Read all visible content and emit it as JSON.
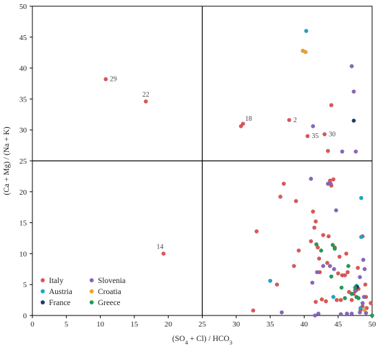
{
  "chart_data": {
    "type": "scatter",
    "xlabel_parts": [
      "(SO",
      "4",
      " + Cl) / HCO",
      "3"
    ],
    "ylabel_parts": [
      "(Ca + Mg) / (Na + K)"
    ],
    "xlim": [
      0,
      50
    ],
    "ylim": [
      0,
      50
    ],
    "xticks": [
      "0",
      "5",
      "10",
      "15",
      "20",
      "25",
      "30",
      "35",
      "40",
      "45",
      "50"
    ],
    "yticks": [
      "0",
      "5",
      "10",
      "15",
      "20",
      "25",
      "30",
      "35",
      "40",
      "45",
      "50"
    ],
    "quadrant_dividers": {
      "x": 25,
      "y": 25
    },
    "grid": false,
    "legend_position": "bottom-left",
    "point_labels": [
      {
        "text": "29",
        "x": 10.8,
        "y": 38.2
      },
      {
        "text": "22",
        "x": 16.7,
        "y": 34.6
      },
      {
        "text": "18",
        "x": 31.0,
        "y": 31.0
      },
      {
        "text": "2",
        "x": 37.8,
        "y": 31.6
      },
      {
        "text": "35",
        "x": 40.5,
        "y": 29.0
      },
      {
        "text": "30",
        "x": 43.0,
        "y": 29.3
      },
      {
        "text": "14",
        "x": 19.3,
        "y": 10.0
      }
    ],
    "series": [
      {
        "name": "Italy",
        "color": "#e05555",
        "points": [
          [
            10.8,
            38.2
          ],
          [
            16.7,
            34.6
          ],
          [
            30.7,
            30.6
          ],
          [
            31.0,
            31.0
          ],
          [
            37.8,
            31.6
          ],
          [
            40.5,
            29.0
          ],
          [
            43.0,
            29.3
          ],
          [
            43.5,
            26.6
          ],
          [
            44.0,
            34.0
          ],
          [
            19.3,
            10.0
          ],
          [
            33.0,
            13.6
          ],
          [
            32.5,
            0.8
          ],
          [
            36.5,
            19.2
          ],
          [
            37.0,
            21.3
          ],
          [
            36.0,
            5.0
          ],
          [
            38.5,
            8.0
          ],
          [
            38.8,
            18.5
          ],
          [
            39.2,
            10.5
          ],
          [
            41.0,
            12.0
          ],
          [
            41.3,
            16.8
          ],
          [
            41.5,
            14.2
          ],
          [
            41.7,
            15.2
          ],
          [
            41.7,
            2.2
          ],
          [
            42.0,
            11.0
          ],
          [
            42.2,
            9.2
          ],
          [
            42.3,
            7.0
          ],
          [
            42.6,
            2.6
          ],
          [
            42.8,
            13.0
          ],
          [
            43.2,
            2.3
          ],
          [
            43.4,
            8.5
          ],
          [
            43.6,
            12.8
          ],
          [
            43.8,
            21.8
          ],
          [
            44.0,
            21.0
          ],
          [
            44.3,
            22.0
          ],
          [
            44.5,
            11.0
          ],
          [
            44.8,
            2.5
          ],
          [
            45.0,
            6.8
          ],
          [
            45.2,
            9.5
          ],
          [
            45.4,
            2.5
          ],
          [
            45.6,
            6.5
          ],
          [
            46.0,
            6.5
          ],
          [
            46.2,
            10.0
          ],
          [
            46.4,
            7.0
          ],
          [
            46.6,
            3.8
          ],
          [
            47.0,
            2.5
          ],
          [
            47.3,
            3.5
          ],
          [
            47.6,
            4.0
          ],
          [
            48.0,
            4.3
          ],
          [
            48.3,
            0.9
          ],
          [
            48.6,
            1.5
          ],
          [
            49.0,
            5.0
          ],
          [
            49.1,
            3.0
          ],
          [
            49.2,
            1.2
          ],
          [
            49.8,
            2.0
          ],
          [
            47.9,
            7.7
          ],
          [
            48.6,
            12.8
          ]
        ]
      },
      {
        "name": "Slovenia",
        "color": "#8866bb",
        "points": [
          [
            41.3,
            30.6
          ],
          [
            43.5,
            21.3
          ],
          [
            43.9,
            21.3
          ],
          [
            47.0,
            40.3
          ],
          [
            47.3,
            36.2
          ],
          [
            47.6,
            26.5
          ],
          [
            45.6,
            26.5
          ],
          [
            44.7,
            17.0
          ],
          [
            41.0,
            22.1
          ],
          [
            41.2,
            5.3
          ],
          [
            41.9,
            7.0
          ],
          [
            42.8,
            8.0
          ],
          [
            43.8,
            8.0
          ],
          [
            44.4,
            7.5
          ],
          [
            45.4,
            0.2
          ],
          [
            46.3,
            0.3
          ],
          [
            48.2,
            0.5
          ],
          [
            48.6,
            2.0
          ],
          [
            48.8,
            3.0
          ],
          [
            48.9,
            7.5
          ],
          [
            49.1,
            0.4
          ],
          [
            47.0,
            0.3
          ],
          [
            42.1,
            0.3
          ],
          [
            41.6,
            0.0
          ],
          [
            36.7,
            0.5
          ],
          [
            48.2,
            6.2
          ],
          [
            48.7,
            9.0
          ],
          [
            47.5,
            4.0
          ]
        ]
      },
      {
        "name": "Austria",
        "color": "#1aa7c9",
        "points": [
          [
            40.3,
            46.0
          ],
          [
            35.0,
            5.6
          ],
          [
            48.4,
            19.0
          ],
          [
            48.4,
            12.7
          ],
          [
            47.7,
            4.8
          ],
          [
            48.3,
            1.2
          ],
          [
            44.3,
            3.0
          ]
        ]
      },
      {
        "name": "Croatia",
        "color": "#f0a030",
        "points": [
          [
            39.8,
            42.8
          ],
          [
            40.2,
            42.6
          ],
          [
            48.9,
            0.9
          ]
        ]
      },
      {
        "name": "France",
        "color": "#1e3c6e",
        "points": [
          [
            47.3,
            31.5
          ],
          [
            47.8,
            4.6
          ]
        ]
      },
      {
        "name": "Greece",
        "color": "#1e9e50",
        "points": [
          [
            41.8,
            11.5
          ],
          [
            42.5,
            10.5
          ],
          [
            44.2,
            11.4
          ],
          [
            44.0,
            6.3
          ],
          [
            44.5,
            10.8
          ],
          [
            45.5,
            4.5
          ],
          [
            46.0,
            2.8
          ],
          [
            46.5,
            8.0
          ],
          [
            47.0,
            3.5
          ],
          [
            47.7,
            3.0
          ],
          [
            48.0,
            2.8
          ],
          [
            47.5,
            4.5
          ],
          [
            50.0,
            0.0
          ]
        ]
      }
    ]
  }
}
